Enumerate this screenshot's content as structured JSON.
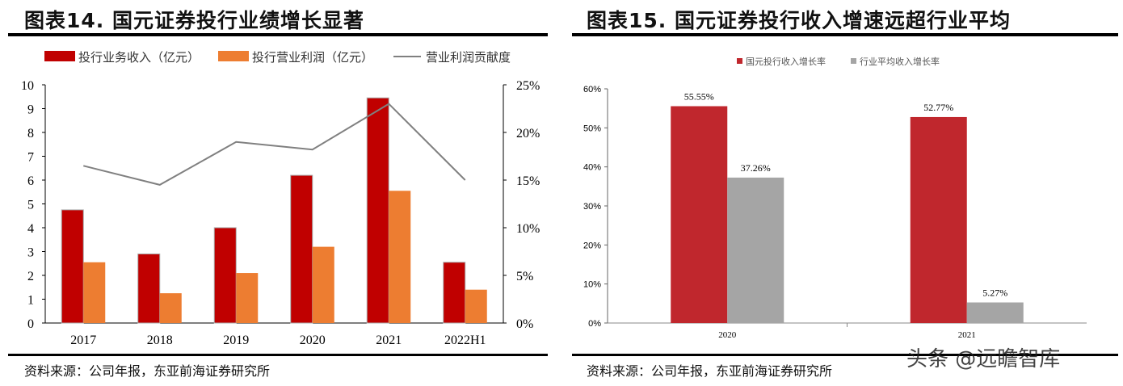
{
  "left": {
    "title": "图表14. 国元证券投行业绩增长显著",
    "source": "资料来源：公司年报，东亚前海证券研究所"
  },
  "right": {
    "title": "图表15. 国元证券投行收入增速远超行业平均",
    "source": "资料来源：公司年报，东亚前海证券研究所"
  },
  "watermark": "头条 @远瞻智库",
  "chart_data": [
    {
      "type": "bar",
      "categories": [
        "2017",
        "2018",
        "2019",
        "2020",
        "2021",
        "2022H1"
      ],
      "series": [
        {
          "name": "投行业务收入（亿元）",
          "values": [
            4.75,
            2.9,
            4.0,
            6.2,
            9.45,
            2.55
          ],
          "color": "#c00000",
          "axis": "left"
        },
        {
          "name": "投行营业利润（亿元）",
          "values": [
            2.55,
            1.25,
            2.1,
            3.2,
            5.55,
            1.4
          ],
          "color": "#ed7d31",
          "axis": "left"
        },
        {
          "name": "营业利润贡献度",
          "type": "line",
          "values": [
            16.5,
            14.5,
            19.0,
            18.2,
            23.0,
            15.0
          ],
          "color": "#808080",
          "axis": "right"
        }
      ],
      "ylim": [
        0,
        10
      ],
      "yticks": [
        "0",
        "1",
        "2",
        "3",
        "4",
        "5",
        "6",
        "7",
        "8",
        "9",
        "10"
      ],
      "y2lim": [
        0,
        25
      ],
      "y2ticks": [
        "0%",
        "5%",
        "10%",
        "15%",
        "20%",
        "25%"
      ],
      "legend": "top"
    },
    {
      "type": "bar",
      "categories": [
        "2020",
        "2021"
      ],
      "series": [
        {
          "name": "国元投行收入增长率",
          "values": [
            55.55,
            52.77
          ],
          "labels": [
            "55.55%",
            "52.77%"
          ],
          "color": "#c0272d"
        },
        {
          "name": "行业平均收入增长率",
          "values": [
            37.26,
            5.27
          ],
          "labels": [
            "37.26%",
            "5.27%"
          ],
          "color": "#a5a5a5"
        }
      ],
      "ylim": [
        0,
        60
      ],
      "yticks": [
        "0%",
        "10%",
        "20%",
        "30%",
        "40%",
        "50%",
        "60%"
      ],
      "legend": "top"
    }
  ]
}
